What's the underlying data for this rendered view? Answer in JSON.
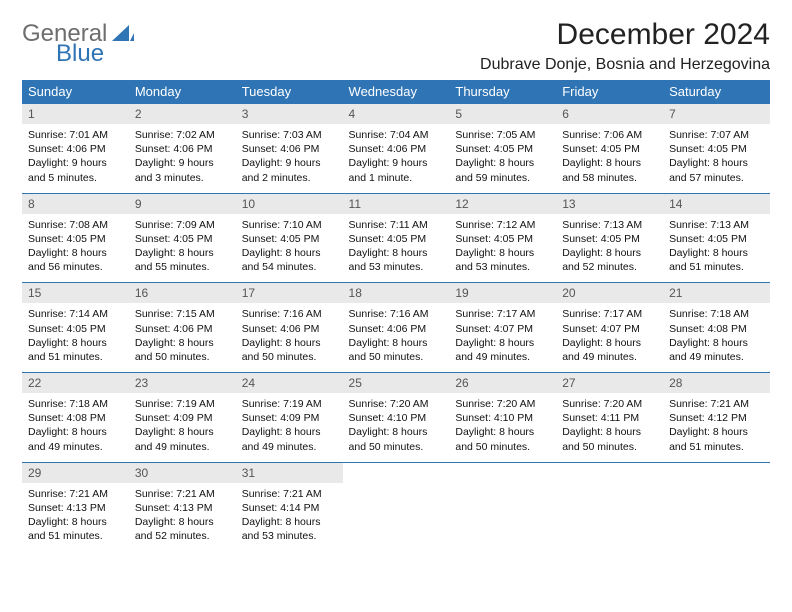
{
  "logo": {
    "general": "General",
    "blue": "Blue"
  },
  "header": {
    "month_title": "December 2024",
    "location": "Dubrave Donje, Bosnia and Herzegovina"
  },
  "colors": {
    "header_bg": "#2f74b5",
    "header_fg": "#ffffff",
    "daynum_bg": "#e9e9e9",
    "daynum_fg": "#555555",
    "row_border": "#2f74b5",
    "body_text": "#111111",
    "logo_gray": "#6e6e6e",
    "logo_blue": "#2f74b5"
  },
  "weekdays": [
    "Sunday",
    "Monday",
    "Tuesday",
    "Wednesday",
    "Thursday",
    "Friday",
    "Saturday"
  ],
  "weeks": [
    [
      {
        "num": "1",
        "sunrise": "Sunrise: 7:01 AM",
        "sunset": "Sunset: 4:06 PM",
        "daylight": "Daylight: 9 hours and 5 minutes."
      },
      {
        "num": "2",
        "sunrise": "Sunrise: 7:02 AM",
        "sunset": "Sunset: 4:06 PM",
        "daylight": "Daylight: 9 hours and 3 minutes."
      },
      {
        "num": "3",
        "sunrise": "Sunrise: 7:03 AM",
        "sunset": "Sunset: 4:06 PM",
        "daylight": "Daylight: 9 hours and 2 minutes."
      },
      {
        "num": "4",
        "sunrise": "Sunrise: 7:04 AM",
        "sunset": "Sunset: 4:06 PM",
        "daylight": "Daylight: 9 hours and 1 minute."
      },
      {
        "num": "5",
        "sunrise": "Sunrise: 7:05 AM",
        "sunset": "Sunset: 4:05 PM",
        "daylight": "Daylight: 8 hours and 59 minutes."
      },
      {
        "num": "6",
        "sunrise": "Sunrise: 7:06 AM",
        "sunset": "Sunset: 4:05 PM",
        "daylight": "Daylight: 8 hours and 58 minutes."
      },
      {
        "num": "7",
        "sunrise": "Sunrise: 7:07 AM",
        "sunset": "Sunset: 4:05 PM",
        "daylight": "Daylight: 8 hours and 57 minutes."
      }
    ],
    [
      {
        "num": "8",
        "sunrise": "Sunrise: 7:08 AM",
        "sunset": "Sunset: 4:05 PM",
        "daylight": "Daylight: 8 hours and 56 minutes."
      },
      {
        "num": "9",
        "sunrise": "Sunrise: 7:09 AM",
        "sunset": "Sunset: 4:05 PM",
        "daylight": "Daylight: 8 hours and 55 minutes."
      },
      {
        "num": "10",
        "sunrise": "Sunrise: 7:10 AM",
        "sunset": "Sunset: 4:05 PM",
        "daylight": "Daylight: 8 hours and 54 minutes."
      },
      {
        "num": "11",
        "sunrise": "Sunrise: 7:11 AM",
        "sunset": "Sunset: 4:05 PM",
        "daylight": "Daylight: 8 hours and 53 minutes."
      },
      {
        "num": "12",
        "sunrise": "Sunrise: 7:12 AM",
        "sunset": "Sunset: 4:05 PM",
        "daylight": "Daylight: 8 hours and 53 minutes."
      },
      {
        "num": "13",
        "sunrise": "Sunrise: 7:13 AM",
        "sunset": "Sunset: 4:05 PM",
        "daylight": "Daylight: 8 hours and 52 minutes."
      },
      {
        "num": "14",
        "sunrise": "Sunrise: 7:13 AM",
        "sunset": "Sunset: 4:05 PM",
        "daylight": "Daylight: 8 hours and 51 minutes."
      }
    ],
    [
      {
        "num": "15",
        "sunrise": "Sunrise: 7:14 AM",
        "sunset": "Sunset: 4:05 PM",
        "daylight": "Daylight: 8 hours and 51 minutes."
      },
      {
        "num": "16",
        "sunrise": "Sunrise: 7:15 AM",
        "sunset": "Sunset: 4:06 PM",
        "daylight": "Daylight: 8 hours and 50 minutes."
      },
      {
        "num": "17",
        "sunrise": "Sunrise: 7:16 AM",
        "sunset": "Sunset: 4:06 PM",
        "daylight": "Daylight: 8 hours and 50 minutes."
      },
      {
        "num": "18",
        "sunrise": "Sunrise: 7:16 AM",
        "sunset": "Sunset: 4:06 PM",
        "daylight": "Daylight: 8 hours and 50 minutes."
      },
      {
        "num": "19",
        "sunrise": "Sunrise: 7:17 AM",
        "sunset": "Sunset: 4:07 PM",
        "daylight": "Daylight: 8 hours and 49 minutes."
      },
      {
        "num": "20",
        "sunrise": "Sunrise: 7:17 AM",
        "sunset": "Sunset: 4:07 PM",
        "daylight": "Daylight: 8 hours and 49 minutes."
      },
      {
        "num": "21",
        "sunrise": "Sunrise: 7:18 AM",
        "sunset": "Sunset: 4:08 PM",
        "daylight": "Daylight: 8 hours and 49 minutes."
      }
    ],
    [
      {
        "num": "22",
        "sunrise": "Sunrise: 7:18 AM",
        "sunset": "Sunset: 4:08 PM",
        "daylight": "Daylight: 8 hours and 49 minutes."
      },
      {
        "num": "23",
        "sunrise": "Sunrise: 7:19 AM",
        "sunset": "Sunset: 4:09 PM",
        "daylight": "Daylight: 8 hours and 49 minutes."
      },
      {
        "num": "24",
        "sunrise": "Sunrise: 7:19 AM",
        "sunset": "Sunset: 4:09 PM",
        "daylight": "Daylight: 8 hours and 49 minutes."
      },
      {
        "num": "25",
        "sunrise": "Sunrise: 7:20 AM",
        "sunset": "Sunset: 4:10 PM",
        "daylight": "Daylight: 8 hours and 50 minutes."
      },
      {
        "num": "26",
        "sunrise": "Sunrise: 7:20 AM",
        "sunset": "Sunset: 4:10 PM",
        "daylight": "Daylight: 8 hours and 50 minutes."
      },
      {
        "num": "27",
        "sunrise": "Sunrise: 7:20 AM",
        "sunset": "Sunset: 4:11 PM",
        "daylight": "Daylight: 8 hours and 50 minutes."
      },
      {
        "num": "28",
        "sunrise": "Sunrise: 7:21 AM",
        "sunset": "Sunset: 4:12 PM",
        "daylight": "Daylight: 8 hours and 51 minutes."
      }
    ],
    [
      {
        "num": "29",
        "sunrise": "Sunrise: 7:21 AM",
        "sunset": "Sunset: 4:13 PM",
        "daylight": "Daylight: 8 hours and 51 minutes."
      },
      {
        "num": "30",
        "sunrise": "Sunrise: 7:21 AM",
        "sunset": "Sunset: 4:13 PM",
        "daylight": "Daylight: 8 hours and 52 minutes."
      },
      {
        "num": "31",
        "sunrise": "Sunrise: 7:21 AM",
        "sunset": "Sunset: 4:14 PM",
        "daylight": "Daylight: 8 hours and 53 minutes."
      },
      {
        "empty": true
      },
      {
        "empty": true
      },
      {
        "empty": true
      },
      {
        "empty": true
      }
    ]
  ]
}
